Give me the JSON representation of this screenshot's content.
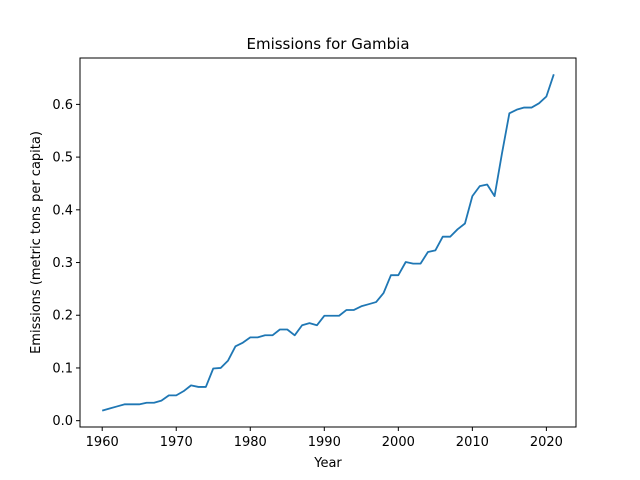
{
  "chart_data": {
    "type": "line",
    "title": "Emissions for Gambia",
    "xlabel": "Year",
    "ylabel": "Emissions (metric tons per capita)",
    "xlim": [
      1957,
      2024
    ],
    "ylim": [
      -0.012,
      0.688
    ],
    "x_ticks": [
      1960,
      1970,
      1980,
      1990,
      2000,
      2010,
      2020
    ],
    "y_ticks": [
      0.0,
      0.1,
      0.2,
      0.3,
      0.4,
      0.5,
      0.6
    ],
    "y_tick_labels": [
      "0.0",
      "0.1",
      "0.2",
      "0.3",
      "0.4",
      "0.5",
      "0.6"
    ],
    "grid": false,
    "line_color": "#1f77b4",
    "series": [
      {
        "x": [
          1960,
          1961,
          1962,
          1963,
          1964,
          1965,
          1966,
          1967,
          1968,
          1969,
          1970,
          1971,
          1972,
          1973,
          1974,
          1975,
          1976,
          1977,
          1978,
          1979,
          1980,
          1981,
          1982,
          1983,
          1984,
          1985,
          1986,
          1987,
          1988,
          1989,
          1990,
          1991,
          1992,
          1993,
          1994,
          1995,
          1996,
          1997,
          1998,
          1999,
          2000,
          2001,
          2002,
          2003,
          2004,
          2005,
          2006,
          2007,
          2008,
          2009,
          2010,
          2011,
          2012,
          2013,
          2014,
          2015,
          2016,
          2017,
          2018,
          2019,
          2020,
          2021
        ],
        "values": [
          0.019,
          0.023,
          0.027,
          0.031,
          0.031,
          0.031,
          0.034,
          0.034,
          0.038,
          0.048,
          0.048,
          0.056,
          0.067,
          0.064,
          0.064,
          0.099,
          0.1,
          0.114,
          0.141,
          0.148,
          0.158,
          0.158,
          0.162,
          0.162,
          0.173,
          0.173,
          0.162,
          0.181,
          0.185,
          0.181,
          0.199,
          0.199,
          0.199,
          0.21,
          0.21,
          0.217,
          0.221,
          0.225,
          0.242,
          0.276,
          0.276,
          0.301,
          0.298,
          0.298,
          0.32,
          0.323,
          0.349,
          0.349,
          0.363,
          0.374,
          0.426,
          0.445,
          0.448,
          0.426,
          0.507,
          0.583,
          0.59,
          0.594,
          0.594,
          0.602,
          0.615,
          0.657
        ]
      }
    ]
  }
}
